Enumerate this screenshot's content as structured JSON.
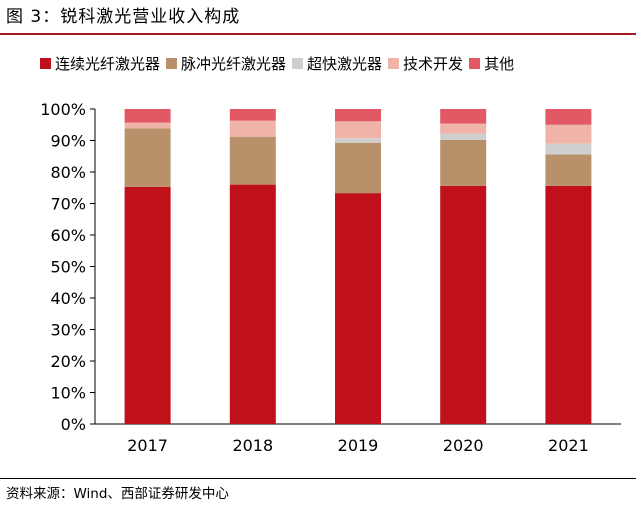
{
  "figure_title": "图 3：锐科激光营业收入构成",
  "source": "资料来源：Wind、西部证券研发中心",
  "chart_data": {
    "type": "bar",
    "stacked": true,
    "categories": [
      "2017",
      "2018",
      "2019",
      "2020",
      "2021"
    ],
    "y_ticks": [
      "0%",
      "10%",
      "20%",
      "30%",
      "40%",
      "50%",
      "60%",
      "70%",
      "80%",
      "90%",
      "100%"
    ],
    "ylim": [
      0,
      100
    ],
    "grid": false,
    "legend_position": "top",
    "series": [
      {
        "name": "连续光纤激光器",
        "color": "#c0101c",
        "values": [
          75.3,
          76.0,
          73.3,
          75.6,
          75.6
        ]
      },
      {
        "name": "脉冲光纤激光器",
        "color": "#b8916a",
        "values": [
          18.5,
          15.2,
          16.0,
          14.6,
          10.0
        ]
      },
      {
        "name": "超快激光器",
        "color": "#cfcfcf",
        "values": [
          0.0,
          0.0,
          1.4,
          2.0,
          3.4
        ]
      },
      {
        "name": "技术开发",
        "color": "#f0b3a8",
        "values": [
          1.9,
          5.1,
          5.4,
          3.2,
          6.0
        ]
      },
      {
        "name": "其他",
        "color": "#e35865",
        "values": [
          4.3,
          3.7,
          3.9,
          4.6,
          5.0
        ]
      }
    ]
  }
}
